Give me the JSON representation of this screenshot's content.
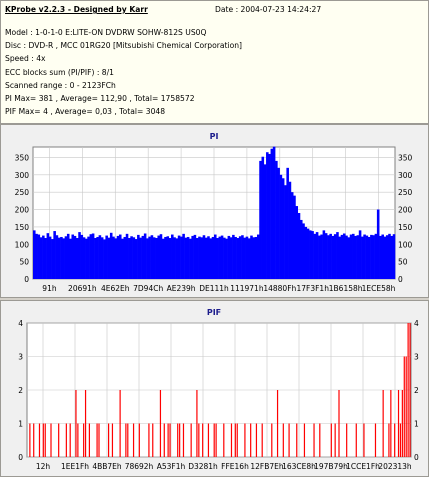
{
  "header": {
    "title": "KProbe v2.2.3 - Designed by Karr",
    "date": "Date : 2004-07-23 14:24:27",
    "model": "Model : 1-0-1-0 E:LITE-ON DVDRW SOHW-812S  US0Q",
    "disc": "Disc : DVD-R , MCC 01RG20  [Mitsubishi Chemical Corporation]",
    "speed": "Speed : 4x",
    "ecc": "ECC blocks sum (PI/PIF) : 8/1",
    "range": "Scanned range : 0 - 2123FCh",
    "pi_stats": "PI Max= 381 , Average= 112,90 , Total= 1758572",
    "pif_stats": "PIF Max= 4 , Average= 0,03 , Total= 3048"
  },
  "colors": {
    "pi": "#0000ff",
    "pif": "#ff0000",
    "title": "#1c1c8c",
    "grid": "#c8c8c8"
  },
  "chart_data": [
    {
      "type": "area",
      "title": "PI",
      "ylim": [
        0,
        380
      ],
      "yticks": [
        0,
        50,
        100,
        150,
        200,
        250,
        300,
        350
      ],
      "xticks": [
        "91h",
        "20691h",
        "4E62Eh",
        "7D94Ch",
        "AE239h",
        "DE111h",
        "111971h",
        "14880Fh",
        "17F3F1h",
        "1B6158h",
        "1ECE58h"
      ],
      "grid": true,
      "series": [
        {
          "values": [
            140,
            130,
            128,
            120,
            125,
            118,
            132,
            122,
            115,
            138,
            126,
            119,
            121,
            117,
            123,
            130,
            116,
            128,
            124,
            118,
            135,
            127,
            120,
            116,
            122,
            129,
            131,
            118,
            121,
            126,
            120,
            114,
            125,
            119,
            133,
            122,
            117,
            124,
            128,
            116,
            121,
            130,
            118,
            123,
            120,
            115,
            127,
            119,
            124,
            131,
            117,
            122,
            126,
            120,
            118,
            125,
            129,
            116,
            121,
            123,
            118,
            128,
            120,
            117,
            125,
            122,
            130,
            119,
            121,
            116,
            124,
            127,
            118,
            122,
            120,
            126,
            119,
            123,
            117,
            121,
            128,
            118,
            122,
            125,
            119,
            116,
            124,
            120,
            127,
            121,
            118,
            123,
            126,
            119,
            122,
            117,
            125,
            120,
            121,
            128,
            340,
            352,
            330,
            365,
            360,
            375,
            381,
            340,
            320,
            300,
            290,
            270,
            320,
            280,
            250,
            240,
            210,
            190,
            170,
            160,
            150,
            145,
            140,
            138,
            130,
            135,
            125,
            128,
            140,
            132,
            126,
            130,
            124,
            129,
            135,
            122,
            127,
            131,
            125,
            120,
            128,
            130,
            124,
            126,
            140,
            122,
            128,
            125,
            121,
            127,
            126,
            130,
            200,
            124,
            128,
            122,
            126,
            130,
            124,
            129
          ]
        }
      ]
    },
    {
      "type": "bar",
      "title": "PIF",
      "ylim": [
        0,
        4
      ],
      "yticks": [
        0,
        1,
        2,
        3,
        4
      ],
      "xticks": [
        "12h",
        "1EE1Fh",
        "4BB7Eh",
        "78692h",
        "A53F1h",
        "D3281h",
        "FFE16h",
        "12FB7Eh",
        "163CE8h",
        "197B79h",
        "1CCE1Fh",
        "202313h"
      ],
      "grid": true,
      "series": [
        {
          "values": [
            0,
            1,
            0,
            1,
            0,
            0,
            1,
            0,
            1,
            1,
            0,
            0,
            1,
            0,
            0,
            0,
            1,
            0,
            0,
            0,
            1,
            0,
            1,
            0,
            0,
            2,
            1,
            0,
            0,
            1,
            2,
            0,
            1,
            0,
            0,
            0,
            1,
            1,
            0,
            0,
            0,
            0,
            1,
            0,
            1,
            0,
            0,
            0,
            2,
            0,
            0,
            1,
            1,
            0,
            0,
            1,
            0,
            0,
            1,
            0,
            0,
            0,
            0,
            1,
            0,
            1,
            0,
            0,
            0,
            2,
            0,
            1,
            0,
            1,
            1,
            0,
            0,
            0,
            1,
            1,
            0,
            1,
            0,
            0,
            0,
            1,
            0,
            0,
            2,
            1,
            0,
            1,
            0,
            0,
            1,
            0,
            0,
            1,
            1,
            0,
            0,
            0,
            1,
            0,
            0,
            0,
            1,
            0,
            1,
            1,
            0,
            0,
            0,
            1,
            0,
            0,
            1,
            0,
            0,
            1,
            0,
            0,
            1,
            0,
            0,
            0,
            0,
            1,
            0,
            0,
            2,
            0,
            0,
            1,
            0,
            0,
            1,
            0,
            0,
            0,
            1,
            0,
            0,
            0,
            1,
            0,
            0,
            0,
            0,
            1,
            0,
            0,
            1,
            0,
            0,
            0,
            0,
            0,
            1,
            0,
            1,
            0,
            2,
            0,
            0,
            0,
            1,
            0,
            0,
            0,
            0,
            1,
            0,
            0,
            0,
            1,
            0,
            0,
            0,
            0,
            0,
            1,
            0,
            0,
            0,
            2,
            0,
            0,
            1,
            2,
            0,
            1,
            0,
            2,
            1,
            2,
            3,
            3,
            4,
            4
          ]
        }
      ]
    }
  ]
}
